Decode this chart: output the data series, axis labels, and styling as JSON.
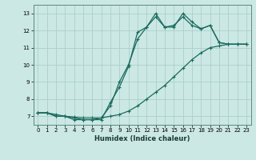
{
  "xlabel": "Humidex (Indice chaleur)",
  "xlim": [
    -0.5,
    23.5
  ],
  "ylim": [
    6.5,
    13.5
  ],
  "xticks": [
    0,
    1,
    2,
    3,
    4,
    5,
    6,
    7,
    8,
    9,
    10,
    11,
    12,
    13,
    14,
    15,
    16,
    17,
    18,
    19,
    20,
    21,
    22,
    23
  ],
  "yticks": [
    7,
    8,
    9,
    10,
    11,
    12,
    13
  ],
  "bg_color": "#cce8e4",
  "grid_color": "#aacfca",
  "line_color": "#1a6b5e",
  "line1_x": [
    0,
    1,
    2,
    3,
    4,
    5,
    6,
    7,
    8,
    9,
    10,
    11,
    12,
    13,
    14,
    15,
    16,
    17,
    18,
    19,
    20,
    21,
    22,
    23
  ],
  "line1_y": [
    7.2,
    7.2,
    7.0,
    7.0,
    6.8,
    6.8,
    6.8,
    6.8,
    7.8,
    8.7,
    9.9,
    11.9,
    12.2,
    13.0,
    12.2,
    12.2,
    13.0,
    12.5,
    12.1,
    12.3,
    11.3,
    11.2,
    11.2,
    11.2
  ],
  "line2_x": [
    0,
    1,
    2,
    3,
    4,
    5,
    6,
    7,
    8,
    9,
    10,
    11,
    12,
    13,
    14,
    15,
    16,
    17,
    18,
    19,
    20,
    21,
    22,
    23
  ],
  "line2_y": [
    7.2,
    7.2,
    7.0,
    7.0,
    6.9,
    6.8,
    6.8,
    6.9,
    7.6,
    9.0,
    10.0,
    11.5,
    12.2,
    12.8,
    12.2,
    12.3,
    12.8,
    12.3,
    12.1,
    12.3,
    11.3,
    11.2,
    11.2,
    11.2
  ],
  "line3_x": [
    0,
    1,
    2,
    3,
    4,
    5,
    6,
    7,
    8,
    9,
    10,
    11,
    12,
    13,
    14,
    15,
    16,
    17,
    18,
    19,
    20,
    21,
    22,
    23
  ],
  "line3_y": [
    7.2,
    7.2,
    7.1,
    7.0,
    6.95,
    6.9,
    6.9,
    6.9,
    7.0,
    7.1,
    7.3,
    7.6,
    8.0,
    8.4,
    8.8,
    9.3,
    9.8,
    10.3,
    10.7,
    11.0,
    11.1,
    11.2,
    11.2,
    11.2
  ]
}
